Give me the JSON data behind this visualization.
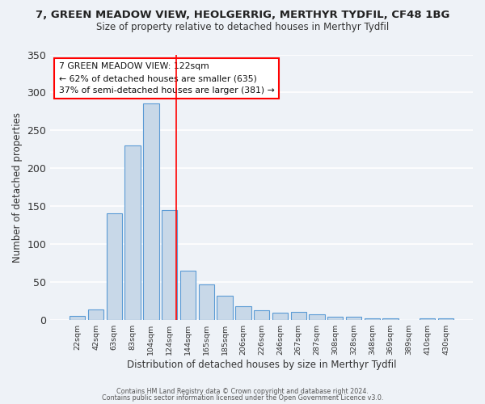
{
  "title": "7, GREEN MEADOW VIEW, HEOLGERRIG, MERTHYR TYDFIL, CF48 1BG",
  "subtitle": "Size of property relative to detached houses in Merthyr Tydfil",
  "xlabel": "Distribution of detached houses by size in Merthyr Tydfil",
  "ylabel": "Number of detached properties",
  "bar_labels": [
    "22sqm",
    "42sqm",
    "63sqm",
    "83sqm",
    "104sqm",
    "124sqm",
    "144sqm",
    "165sqm",
    "185sqm",
    "206sqm",
    "226sqm",
    "246sqm",
    "267sqm",
    "287sqm",
    "308sqm",
    "328sqm",
    "348sqm",
    "369sqm",
    "389sqm",
    "410sqm",
    "430sqm"
  ],
  "bar_values": [
    5,
    14,
    140,
    230,
    286,
    145,
    65,
    47,
    32,
    18,
    13,
    9,
    10,
    7,
    4,
    4,
    2,
    2,
    0,
    2,
    2
  ],
  "bar_color": "#c8d8e8",
  "bar_edge_color": "#5b9bd5",
  "vline_color": "red",
  "vline_pos": 5.35,
  "annotation_text": "7 GREEN MEADOW VIEW: 122sqm\n← 62% of detached houses are smaller (635)\n37% of semi-detached houses are larger (381) →",
  "annotation_box_color": "white",
  "annotation_box_edge": "red",
  "ylim": [
    0,
    350
  ],
  "yticks": [
    0,
    50,
    100,
    150,
    200,
    250,
    300,
    350
  ],
  "footer1": "Contains HM Land Registry data © Crown copyright and database right 2024.",
  "footer2": "Contains public sector information licensed under the Open Government Licence v3.0.",
  "bg_color": "#eef2f7",
  "plot_bg_color": "#eef2f7"
}
